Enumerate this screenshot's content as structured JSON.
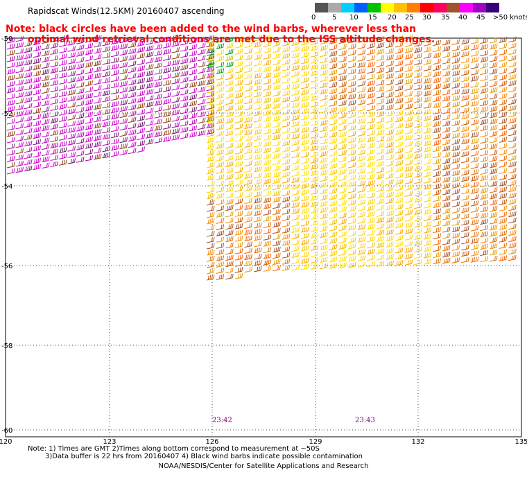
{
  "title": "Rapidscat Winds(12.5KM) 20160407 ascending",
  "warning_lines": [
    "Note: black circles have been added to the wind barbs, wherever less than",
    "optimal wind retrieval conditions are met due to the ISS altitude changes."
  ],
  "colorbar": {
    "labels": [
      "0",
      "5",
      "10",
      "15",
      "20",
      "25",
      "30",
      "35",
      "40",
      "45",
      ">50 knots"
    ],
    "colors": [
      "#555555",
      "#aaaaaa",
      "#00d0ff",
      "#0060ff",
      "#00c000",
      "#ffff00",
      "#ffc000",
      "#ff8000",
      "#ff0000",
      "#ff0060",
      "#a0522d",
      "#ff00ff",
      "#a000c0",
      "#3a007a"
    ]
  },
  "axes": {
    "lon_labels": [
      "120",
      "123",
      "126",
      "129",
      "132",
      "135"
    ],
    "lat_labels": [
      "-50",
      "-52",
      "-54",
      "-56",
      "-58",
      "-60"
    ]
  },
  "time_labels": [
    "23:42",
    "23:43"
  ],
  "notes": [
    "Note: 1) Times are GMT 2)Times along bottom correspond to measurement at ~50S",
    "3)Data buffer is 22 hrs from 20160407 4) Black wind barbs indicate possible contamination"
  ],
  "footer": "NOAA/NESDIS/Center for Satellite Applications and Research"
}
